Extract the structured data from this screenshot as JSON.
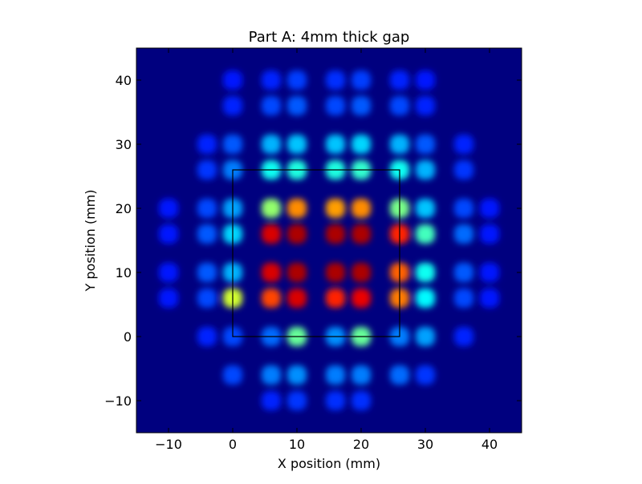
{
  "chart_data": {
    "type": "heatmap",
    "title": "Part A: 4mm thick gap",
    "xlabel": "X position (mm)",
    "ylabel": "Y position (mm)",
    "xlim": [
      -15,
      45
    ],
    "ylim": [
      -15,
      45
    ],
    "xticks": [
      -10,
      0,
      10,
      20,
      30,
      40
    ],
    "yticks": [
      -10,
      0,
      10,
      20,
      30,
      40
    ],
    "colormap": "jet",
    "background_color": "#00007f",
    "overlay_rectangle": {
      "x0": 0,
      "y0": 0,
      "x1": 26,
      "y1": 26,
      "color": "#000000"
    },
    "x_centers": [
      -10,
      -4,
      0,
      6,
      10,
      16,
      20,
      26,
      30,
      36,
      40
    ],
    "y_centers": [
      -10,
      -6,
      0,
      6,
      10,
      16,
      20,
      26,
      30,
      36,
      40
    ],
    "intensity_rows": [
      {
        "y": 40,
        "values": [
          0.0,
          0.0,
          0.02,
          0.04,
          0.07,
          0.05,
          0.07,
          0.04,
          0.02,
          0.0,
          0.0
        ]
      },
      {
        "y": 36,
        "values": [
          0.0,
          0.0,
          0.04,
          0.08,
          0.1,
          0.08,
          0.1,
          0.08,
          0.04,
          0.0,
          0.0
        ]
      },
      {
        "y": 30,
        "values": [
          0.0,
          0.04,
          0.1,
          0.2,
          0.22,
          0.22,
          0.24,
          0.2,
          0.1,
          0.04,
          0.0
        ]
      },
      {
        "y": 26,
        "values": [
          0.0,
          0.06,
          0.14,
          0.3,
          0.32,
          0.32,
          0.34,
          0.3,
          0.2,
          0.06,
          0.0
        ]
      },
      {
        "y": 20,
        "values": [
          0.02,
          0.08,
          0.18,
          0.45,
          0.7,
          0.68,
          0.7,
          0.42,
          0.22,
          0.08,
          0.02
        ]
      },
      {
        "y": 16,
        "values": [
          0.02,
          0.1,
          0.24,
          0.9,
          0.95,
          0.95,
          0.95,
          0.82,
          0.36,
          0.12,
          0.02
        ]
      },
      {
        "y": 10,
        "values": [
          0.02,
          0.1,
          0.2,
          0.9,
          0.95,
          0.95,
          0.95,
          0.75,
          0.3,
          0.1,
          0.02
        ]
      },
      {
        "y": 6,
        "values": [
          0.02,
          0.08,
          0.52,
          0.78,
          0.9,
          0.82,
          0.88,
          0.72,
          0.28,
          0.08,
          0.02
        ]
      },
      {
        "y": 0,
        "values": [
          0.0,
          0.04,
          0.08,
          0.12,
          0.4,
          0.16,
          0.4,
          0.14,
          0.18,
          0.04,
          0.0
        ]
      },
      {
        "y": -6,
        "values": [
          0.0,
          0.0,
          0.08,
          0.14,
          0.16,
          0.14,
          0.14,
          0.12,
          0.06,
          0.0,
          0.0
        ]
      },
      {
        "y": -10,
        "values": [
          0.0,
          0.0,
          0.0,
          0.04,
          0.06,
          0.05,
          0.05,
          0.0,
          0.0,
          0.0,
          0.0
        ]
      }
    ]
  }
}
